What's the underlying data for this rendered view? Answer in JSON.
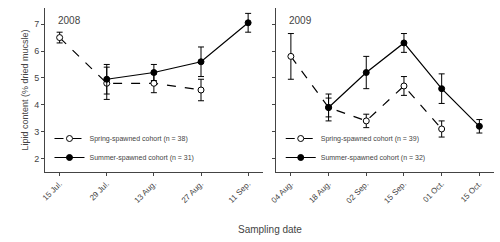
{
  "chart_data": [
    {
      "type": "line",
      "title": "2008",
      "categories": [
        "15 Jul.",
        "29 Jul.",
        "13 Aug.",
        "27 Aug.",
        "11 Sep."
      ],
      "series": [
        {
          "name": "Spring-spawned cohort (n = 38)",
          "color": "#000000",
          "line_style": "dashed",
          "marker": "open",
          "values": [
            6.5,
            4.8,
            4.8,
            4.55,
            null
          ],
          "yerr": [
            0.2,
            0.6,
            0.35,
            0.4,
            null
          ]
        },
        {
          "name": "Summer-spawned cohort (n = 31)",
          "color": "#000000",
          "line_style": "solid",
          "marker": "filled",
          "values": [
            null,
            4.95,
            5.2,
            5.6,
            7.05
          ],
          "yerr": [
            null,
            0.55,
            0.3,
            0.55,
            0.35
          ]
        }
      ],
      "ylabel": "Lipid content (% dried mucsle)",
      "xlabel": "Sampling date",
      "ylim": [
        1.5,
        7.6
      ],
      "yticks": [
        2,
        3,
        4,
        5,
        6,
        7
      ],
      "grid": false,
      "legend": "lower left"
    },
    {
      "type": "line",
      "title": "2009",
      "categories": [
        "04 Aug.",
        "18 Aug.",
        "02 Sep.",
        "15 Sep.",
        "01 Oct.",
        "15 Oct."
      ],
      "series": [
        {
          "name": "Spring-spawned cohort (n = 39)",
          "color": "#000000",
          "line_style": "dashed",
          "marker": "open",
          "values": [
            5.8,
            3.9,
            3.4,
            4.7,
            3.1,
            null
          ],
          "yerr": [
            0.85,
            0.35,
            0.25,
            0.35,
            0.3,
            null
          ]
        },
        {
          "name": "Summer-spawned cohort (n = 32)",
          "color": "#000000",
          "line_style": "solid",
          "marker": "filled",
          "values": [
            null,
            3.9,
            5.2,
            6.3,
            4.6,
            3.2
          ],
          "yerr": [
            null,
            0.5,
            0.6,
            0.35,
            0.55,
            0.25
          ]
        }
      ],
      "ylim": [
        1.5,
        7.6
      ],
      "yticks": [
        2,
        3,
        4,
        5,
        6,
        7
      ],
      "grid": false,
      "legend": "lower left",
      "tick_labels": "x"
    }
  ]
}
